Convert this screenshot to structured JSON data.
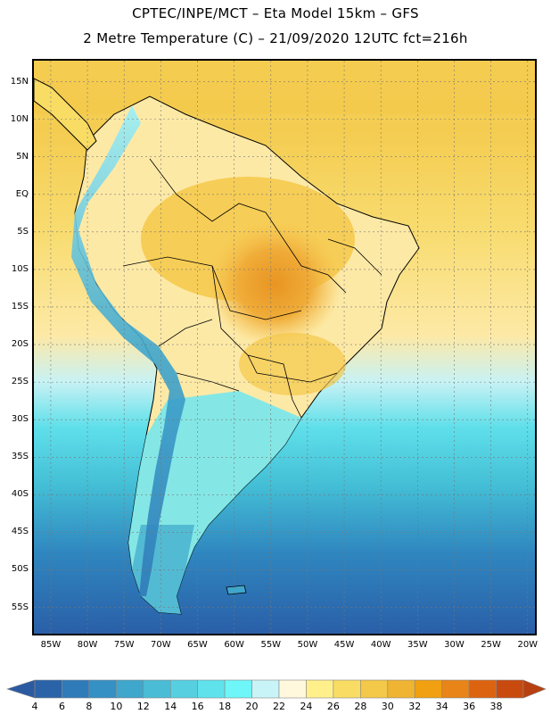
{
  "title_line1": "CPTEC/INPE/MCT –  Eta Model 15km – GFS",
  "title_line2": "2 Metre Temperature (C) – 21/09/2020 12UTC fct=216h",
  "latitude_labels": [
    "15N",
    "10N",
    "5N",
    "EQ",
    "5S",
    "10S",
    "15S",
    "20S",
    "25S",
    "30S",
    "35S",
    "40S",
    "45S",
    "50S",
    "55S"
  ],
  "latitude_values": [
    15,
    10,
    5,
    0,
    -5,
    -10,
    -15,
    -20,
    -25,
    -30,
    -35,
    -40,
    -45,
    -50,
    -55
  ],
  "longitude_labels": [
    "85W",
    "80W",
    "75W",
    "70W",
    "65W",
    "60W",
    "55W",
    "50W",
    "45W",
    "40W",
    "35W",
    "30W",
    "25W",
    "20W"
  ],
  "longitude_values": [
    -85,
    -80,
    -75,
    -70,
    -65,
    -60,
    -55,
    -50,
    -45,
    -40,
    -35,
    -30,
    -25,
    -20
  ],
  "colorbar": {
    "ticks": [
      "4",
      "6",
      "8",
      "10",
      "12",
      "14",
      "16",
      "18",
      "20",
      "22",
      "24",
      "26",
      "28",
      "30",
      "32",
      "34",
      "36",
      "38"
    ],
    "colors": [
      "#2b63a8",
      "#2f7ab8",
      "#3590c4",
      "#3fa6cc",
      "#4bbcd6",
      "#56cfe0",
      "#5fe2ec",
      "#6ef6f8",
      "#c8f4f8",
      "#fff8dc",
      "#fff08c",
      "#f8dc64",
      "#f4c848",
      "#eeb432",
      "#f0a010",
      "#e88418",
      "#dc6410",
      "#c84a0e"
    ],
    "low_arrow_color": "#2c5aa0",
    "high_arrow_color": "#b84010"
  }
}
